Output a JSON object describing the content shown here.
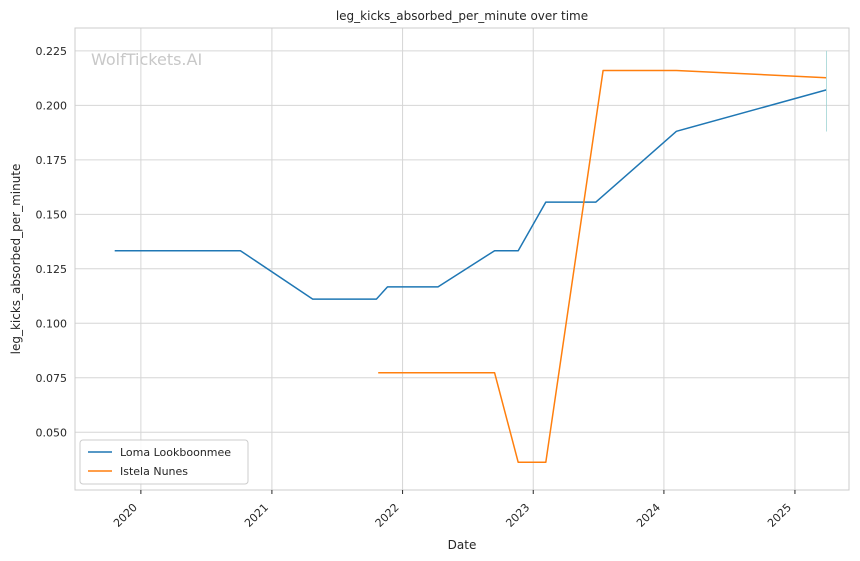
{
  "watermark": "WolfTickets.AI",
  "chart_data": {
    "type": "line",
    "title": "leg_kicks_absorbed_per_minute over time",
    "xlabel": "Date",
    "ylabel": "leg_kicks_absorbed_per_minute",
    "xlim": [
      "2019-07-01",
      "2025-06-01"
    ],
    "ylim": [
      0.0235,
      0.2355
    ],
    "x_ticks": [
      "2020",
      "2021",
      "2022",
      "2023",
      "2024",
      "2025"
    ],
    "x_tick_dates": [
      "2020-01-01",
      "2021-01-01",
      "2022-01-01",
      "2023-01-01",
      "2024-01-01",
      "2025-01-01"
    ],
    "y_ticks": [
      "0.050",
      "0.075",
      "0.100",
      "0.125",
      "0.150",
      "0.175",
      "0.200",
      "0.225"
    ],
    "y_tick_values": [
      0.05,
      0.075,
      0.1,
      0.125,
      0.15,
      0.175,
      0.2,
      0.225
    ],
    "grid": true,
    "legend_position": "bottom-left",
    "series": [
      {
        "name": "Loma Lookboonmee",
        "color": "#1f77b4",
        "points": [
          {
            "x": "2019-10-20",
            "y": 0.1333
          },
          {
            "x": "2020-10-05",
            "y": 0.1333
          },
          {
            "x": "2021-04-25",
            "y": 0.1111
          },
          {
            "x": "2021-10-20",
            "y": 0.1111
          },
          {
            "x": "2021-11-20",
            "y": 0.1167
          },
          {
            "x": "2022-04-10",
            "y": 0.1167
          },
          {
            "x": "2022-09-15",
            "y": 0.1333
          },
          {
            "x": "2022-11-20",
            "y": 0.1333
          },
          {
            "x": "2023-02-05",
            "y": 0.1556
          },
          {
            "x": "2023-06-25",
            "y": 0.1556
          },
          {
            "x": "2024-02-05",
            "y": 0.1881
          },
          {
            "x": "2025-03-30",
            "y": 0.2071
          }
        ]
      },
      {
        "name": "Istela Nunes",
        "color": "#ff7f0e",
        "points": [
          {
            "x": "2021-10-25",
            "y": 0.0773
          },
          {
            "x": "2022-09-15",
            "y": 0.0773
          },
          {
            "x": "2022-11-20",
            "y": 0.0362
          },
          {
            "x": "2023-02-05",
            "y": 0.0362
          },
          {
            "x": "2023-07-15",
            "y": 0.216
          },
          {
            "x": "2024-02-05",
            "y": 0.216
          },
          {
            "x": "2025-03-30",
            "y": 0.2127
          }
        ]
      }
    ]
  }
}
